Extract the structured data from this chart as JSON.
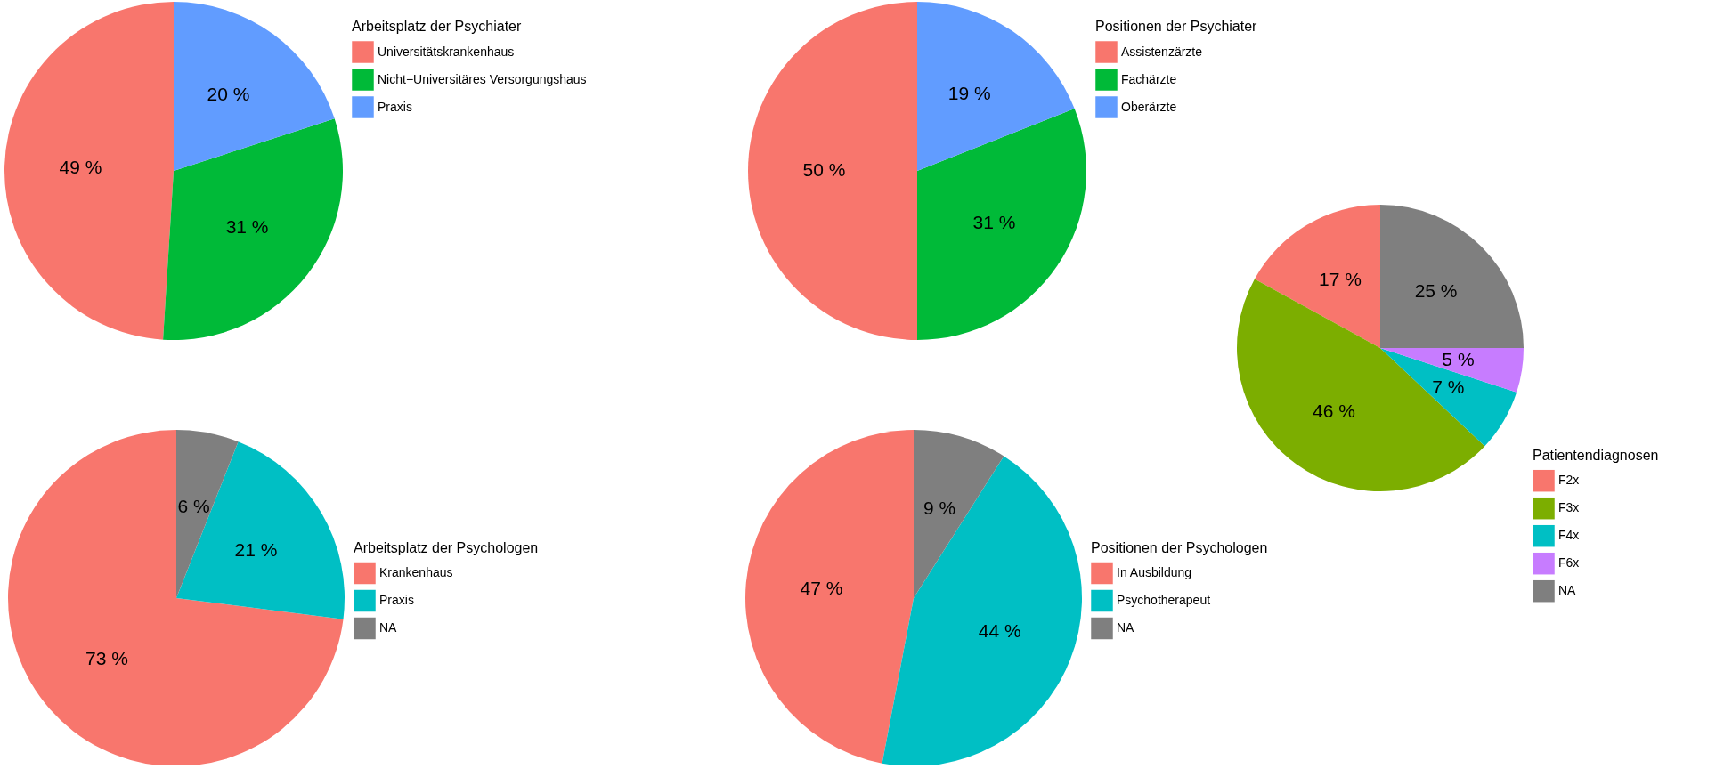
{
  "chart_data": [
    {
      "type": "pie",
      "legend_title": "Arbeitsplatz der Psychiater",
      "legend": "top right",
      "categories": [
        "Universitätskrankenhaus",
        "Nicht−Universitäres Versorgungshaus",
        "Praxis"
      ],
      "values": [
        49,
        31,
        20
      ],
      "value_labels": [
        "49 %",
        "31 %",
        "20 %"
      ],
      "colors": [
        "#f8766d",
        "#00ba38",
        "#619cff"
      ]
    },
    {
      "type": "pie",
      "legend_title": "Positionen der Psychiater",
      "legend": "top right",
      "categories": [
        "Assistenzärzte",
        "Fachärzte",
        "Oberärzte"
      ],
      "values": [
        50,
        31,
        19
      ],
      "value_labels": [
        "50 %",
        "31 %",
        "19 %"
      ],
      "colors": [
        "#f8766d",
        "#00ba38",
        "#619cff"
      ]
    },
    {
      "type": "pie",
      "legend_title": "Patientendiagnosen",
      "legend": "bottom right",
      "categories": [
        "F2x",
        "F3x",
        "F4x",
        "F6x",
        "NA"
      ],
      "values": [
        17,
        46,
        7,
        5,
        25
      ],
      "value_labels": [
        "17 %",
        "46 %",
        "7 %",
        "5 %",
        "25 %"
      ],
      "colors": [
        "#f8766d",
        "#7cae00",
        "#00bfc4",
        "#c77cff",
        "#7f7f7f"
      ]
    },
    {
      "type": "pie",
      "legend_title": "Arbeitsplatz der Psychologen",
      "legend": "right",
      "categories": [
        "Krankenhaus",
        "Praxis",
        "NA"
      ],
      "values": [
        73,
        21,
        6
      ],
      "value_labels": [
        "73 %",
        "21 %",
        "6 %"
      ],
      "colors": [
        "#f8766d",
        "#00bfc4",
        "#7f7f7f"
      ]
    },
    {
      "type": "pie",
      "legend_title": "Positionen der Psychologen",
      "legend": "right",
      "categories": [
        "In Ausbildung",
        "Psychotherapeut",
        "NA"
      ],
      "values": [
        47,
        44,
        9
      ],
      "value_labels": [
        "47 %",
        "44 %",
        "9 %"
      ],
      "colors": [
        "#f8766d",
        "#00bfc4",
        "#7f7f7f"
      ]
    }
  ]
}
